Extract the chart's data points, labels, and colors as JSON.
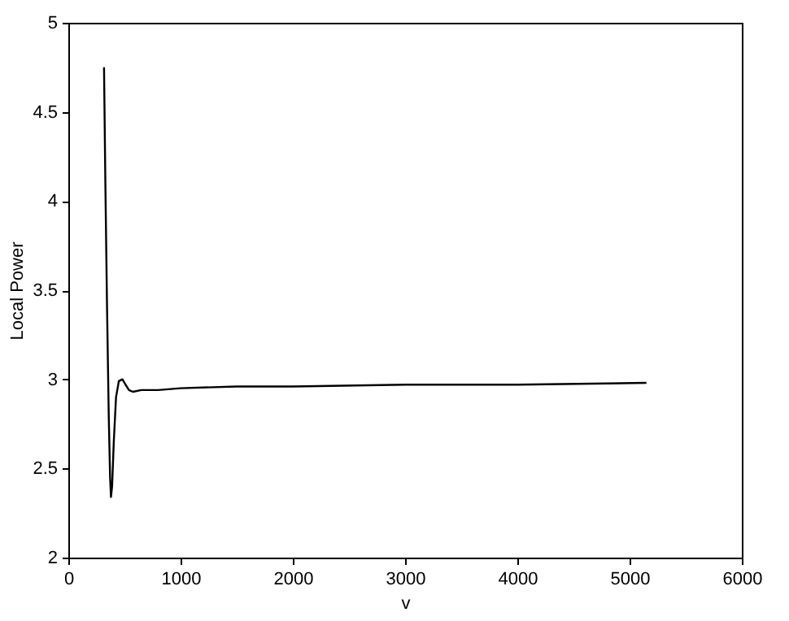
{
  "chart_data": {
    "type": "line",
    "xlabel": "v",
    "ylabel": "Local Power",
    "x": [
      318,
      330,
      345,
      360,
      372,
      380,
      390,
      405,
      425,
      450,
      482,
      510,
      540,
      575,
      650,
      800,
      1000,
      1500,
      2000,
      3000,
      4000,
      5150
    ],
    "series": [
      {
        "color": "#000000",
        "values": [
          4.75,
          4.1,
          3.4,
          2.8,
          2.45,
          2.34,
          2.4,
          2.65,
          2.9,
          2.99,
          3.0,
          2.97,
          2.94,
          2.93,
          2.94,
          2.94,
          2.95,
          2.96,
          2.96,
          2.97,
          2.97,
          2.98
        ]
      }
    ],
    "xlim": [
      0,
      6000
    ],
    "ylim": [
      2,
      5
    ],
    "xticks": [
      0,
      1000,
      2000,
      3000,
      4000,
      5000,
      6000
    ],
    "yticks": [
      2,
      2.5,
      3,
      3.5,
      4,
      4.5,
      5
    ],
    "grid": false,
    "marker": "none",
    "line_style": "solid"
  }
}
